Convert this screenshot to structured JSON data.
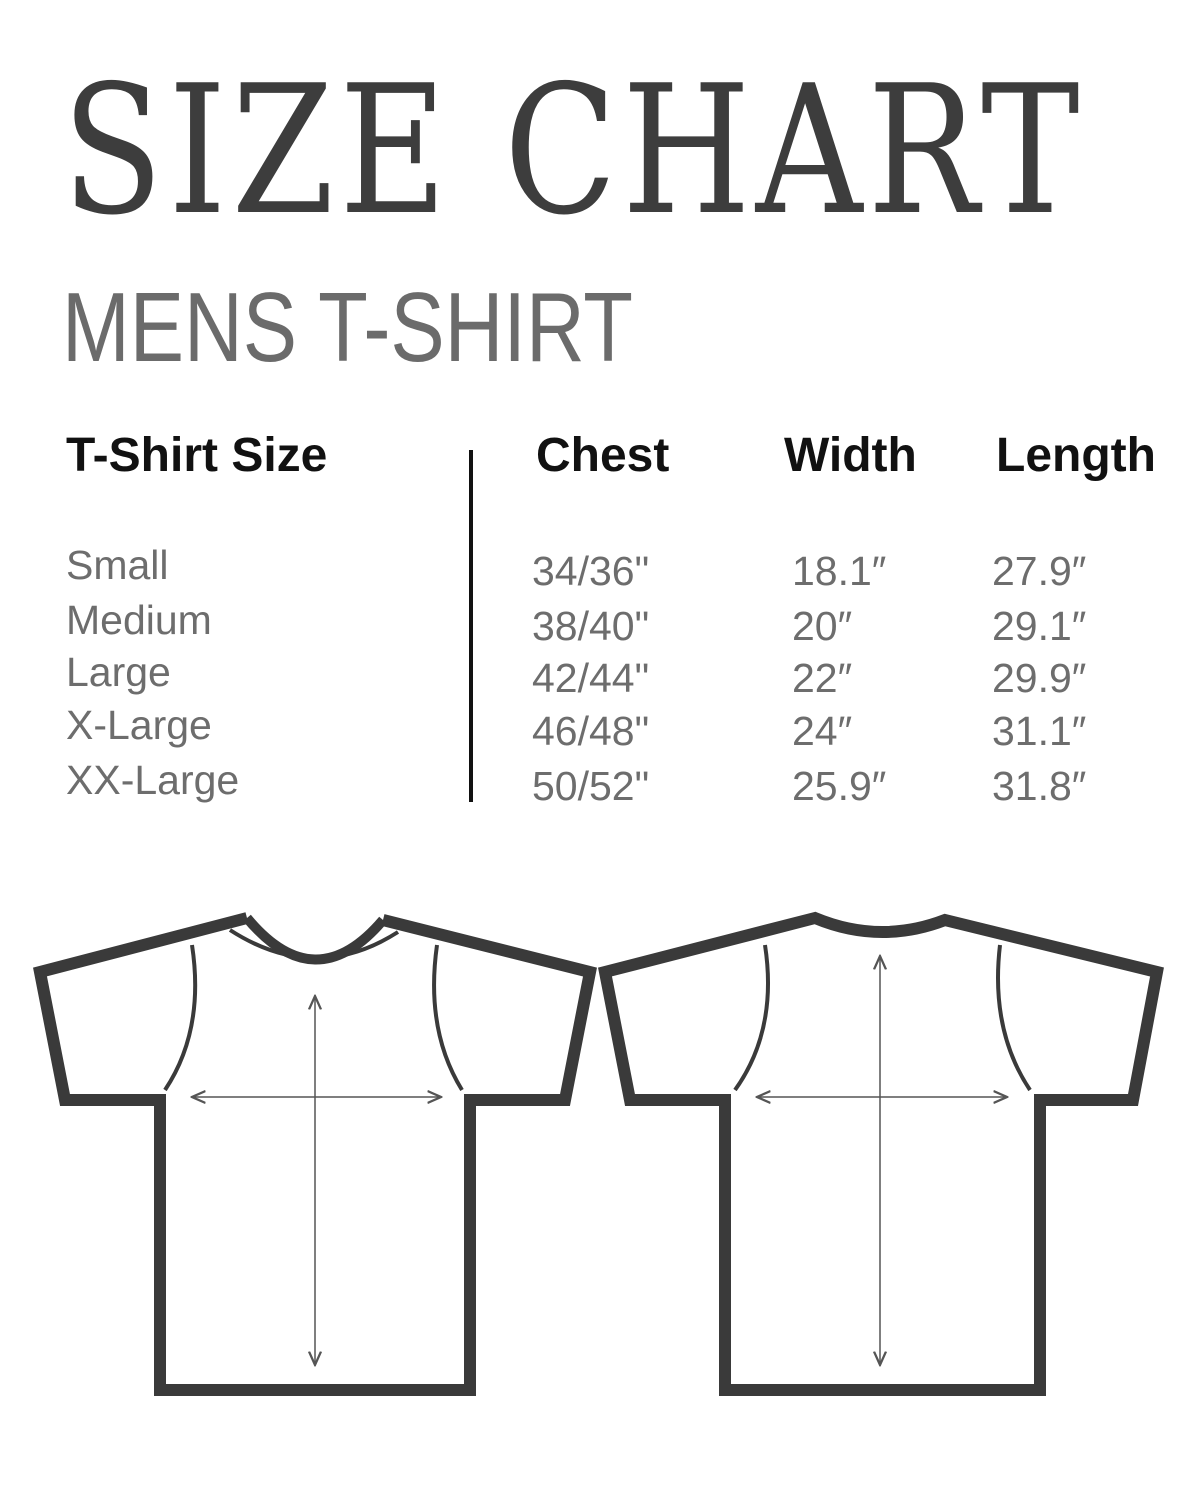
{
  "title": "SIZE CHART",
  "subtitle": "MENS T-SHIRT",
  "table": {
    "headers": [
      "T-Shirt Size",
      "Chest",
      "Width",
      "Length"
    ],
    "rows": [
      {
        "size": "Small",
        "chest": "34/36\"",
        "width": "18.1″",
        "length": "27.9″"
      },
      {
        "size": "Medium",
        "chest": "38/40\"",
        "width": "20″",
        "length": "29.1″"
      },
      {
        "size": "Large",
        "chest": "42/44\"",
        "width": "22″",
        "length": "29.9″"
      },
      {
        "size": "X-Large",
        "chest": "46/48\"",
        "width": "24″",
        "length": "31.1″"
      },
      {
        "size": "XX-Large",
        "chest": "50/52\"",
        "width": "25.9″",
        "length": "31.8″"
      }
    ]
  },
  "colors": {
    "title": "#3d3d3d",
    "subtitle": "#6b6b6b",
    "outline": "#3a3a3a",
    "values": "#6d6d6d"
  },
  "illustrations": [
    "t-shirt-front",
    "t-shirt-back"
  ]
}
